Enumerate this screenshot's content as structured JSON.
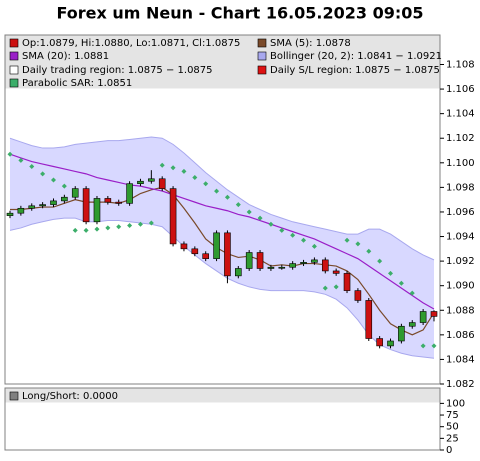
{
  "chart_data": [
    {
      "type": "candlestick",
      "title": "Forex um Neun - Chart 16.05.2023 09:05",
      "up_color": "#2f9a2f",
      "down_color": "#cc1111",
      "open": [
        1.0957,
        1.0959,
        1.0963,
        1.0965,
        1.0966,
        1.0969,
        1.0972,
        1.0979,
        1.0952,
        1.0971,
        1.0968,
        1.0967,
        1.0983,
        1.0985,
        1.0987,
        1.0979,
        1.0934,
        1.093,
        1.0926,
        1.0922,
        1.0943,
        1.0908,
        1.0914,
        1.0927,
        1.0914,
        1.0915,
        1.0915,
        1.0918,
        1.0919,
        1.0921,
        1.0912,
        1.091,
        1.0896,
        1.0888,
        1.0857,
        1.0851,
        1.0855,
        1.0867,
        1.087,
        1.0879
      ],
      "high": [
        1.0961,
        1.0965,
        1.0967,
        1.0968,
        1.0971,
        1.0974,
        1.0981,
        1.0981,
        1.0973,
        1.0973,
        1.097,
        1.0985,
        1.0987,
        1.0994,
        1.0989,
        1.0981,
        1.0936,
        1.0932,
        1.0928,
        1.0945,
        1.0945,
        1.0916,
        1.0929,
        1.0929,
        1.0917,
        1.0917,
        1.092,
        1.0921,
        1.0923,
        1.0923,
        1.0914,
        1.0912,
        1.0898,
        1.089,
        1.0859,
        1.0857,
        1.0869,
        1.0872,
        1.0881,
        1.088
      ],
      "low": [
        1.0955,
        1.0957,
        1.0961,
        1.0963,
        1.0964,
        1.0967,
        1.097,
        1.095,
        1.095,
        1.0966,
        1.0965,
        1.0965,
        1.0981,
        1.0983,
        1.0977,
        1.0932,
        1.0928,
        1.0924,
        1.092,
        1.092,
        1.0902,
        1.0906,
        1.0912,
        1.0912,
        1.0912,
        1.0913,
        1.0913,
        1.0916,
        1.0917,
        1.091,
        1.0908,
        1.0894,
        1.0886,
        1.0855,
        1.0849,
        1.0849,
        1.0853,
        1.0865,
        1.0868,
        1.0871
      ],
      "close": [
        1.0959,
        1.0963,
        1.0965,
        1.0966,
        1.0969,
        1.0972,
        1.0979,
        1.0952,
        1.0971,
        1.0968,
        1.0967,
        1.0983,
        1.0985,
        1.0987,
        1.0979,
        1.0934,
        1.093,
        1.0926,
        1.0922,
        1.0943,
        1.0908,
        1.0914,
        1.0927,
        1.0914,
        1.0915,
        1.0915,
        1.0918,
        1.0919,
        1.0921,
        1.0912,
        1.091,
        1.0896,
        1.0888,
        1.0857,
        1.0851,
        1.0855,
        1.0867,
        1.087,
        1.0879,
        1.0875
      ],
      "series": [
        {
          "name": "SMA (5): 1.0878",
          "color": "#7a4a2a",
          "values": [
            1.0962,
            1.0962,
            1.0963,
            1.0964,
            1.0964,
            1.0967,
            1.097,
            1.0968,
            1.0968,
            1.0968,
            1.0967,
            1.097,
            1.0975,
            1.0978,
            1.098,
            1.0974,
            1.0963,
            1.0951,
            1.0938,
            1.0931,
            1.0926,
            1.0923,
            1.0924,
            1.0921,
            1.0916,
            1.0917,
            1.0916,
            1.0918,
            1.0918,
            1.0917,
            1.0916,
            1.0912,
            1.0905,
            1.0893,
            1.088,
            1.0869,
            1.0864,
            1.086,
            1.0864,
            1.0878
          ]
        },
        {
          "name": "SMA (20): 1.0881",
          "color": "#9a1fc8",
          "values": [
            1.1007,
            1.1004,
            1.1001,
            1.0999,
            1.0997,
            1.0995,
            1.0993,
            1.0991,
            1.0988,
            1.0986,
            1.0984,
            1.0982,
            1.0981,
            1.0979,
            1.0977,
            1.0974,
            1.0971,
            1.0968,
            1.0965,
            1.0963,
            1.0961,
            1.0958,
            1.0956,
            1.0953,
            1.095,
            1.0947,
            1.0944,
            1.0941,
            1.0938,
            1.0934,
            1.093,
            1.0926,
            1.0922,
            1.0916,
            1.091,
            1.0904,
            1.0898,
            1.0892,
            1.0886,
            1.0881
          ]
        },
        {
          "name": "Bollinger (20, 2): 1.0841 − 1.0921",
          "color": "#a8a8ee",
          "upper": [
            1.102,
            1.1017,
            1.1014,
            1.1012,
            1.1012,
            1.1013,
            1.1015,
            1.1016,
            1.1017,
            1.1018,
            1.1018,
            1.1019,
            1.102,
            1.1021,
            1.102,
            1.1015,
            1.1008,
            1.1,
            1.0992,
            1.0985,
            1.0978,
            1.0972,
            1.0966,
            1.0962,
            1.0958,
            1.0955,
            1.0952,
            1.095,
            1.0948,
            1.0946,
            1.0944,
            1.0942,
            1.0942,
            1.0946,
            1.0946,
            1.0942,
            1.0936,
            1.093,
            1.0925,
            1.0921
          ],
          "lower": [
            1.0945,
            1.0947,
            1.095,
            1.0952,
            1.0954,
            1.0955,
            1.0955,
            1.0952,
            1.0952,
            1.0953,
            1.0953,
            1.0952,
            1.0951,
            1.095,
            1.0948,
            1.094,
            1.0932,
            1.0925,
            1.0918,
            1.0912,
            1.0906,
            1.0902,
            1.0899,
            1.0897,
            1.0896,
            1.0896,
            1.0896,
            1.0896,
            1.0895,
            1.0893,
            1.0889,
            1.0882,
            1.0872,
            1.086,
            1.0852,
            1.0848,
            1.0845,
            1.0843,
            1.0842,
            1.0841
          ]
        },
        {
          "name": "Parabolic SAR: 1.0851",
          "color": "#3cae6a",
          "values": [
            1.1007,
            1.1002,
            1.0997,
            1.0991,
            1.0986,
            1.0981,
            1.0945,
            1.0945,
            1.0946,
            1.0947,
            1.0948,
            1.0949,
            1.095,
            1.0951,
            1.0998,
            1.0996,
            1.0993,
            1.0988,
            1.0983,
            1.0977,
            1.0972,
            1.0966,
            1.096,
            1.0955,
            1.095,
            1.0945,
            1.0941,
            1.0937,
            1.0932,
            1.0898,
            1.0899,
            1.0937,
            1.0934,
            1.0928,
            1.092,
            1.091,
            1.0902,
            1.0894,
            1.0851,
            1.0851
          ]
        }
      ],
      "legend_extra": [
        {
          "name": "Op:1.0879, Hi:1.0880, Lo:1.0871, Cl:1.0875",
          "color": "#cc1111"
        },
        {
          "name": "Daily trading region: 1.0875 − 1.0875",
          "color": "#ffffff"
        },
        {
          "name": "Daily S/L region: 1.0875 − 1.0875",
          "color": "#dd1111"
        }
      ],
      "ylim": [
        1.082,
        1.1104
      ],
      "yticks": [
        1.082,
        1.084,
        1.086,
        1.088,
        {
          "value": 1.09,
          "label": "1.090"
        },
        1.092,
        1.094,
        1.096,
        1.098,
        {
          "value": 1.1,
          "label": "1.100"
        },
        1.102,
        1.104,
        1.106,
        1.108
      ]
    },
    {
      "type": "line",
      "legend": "Long/Short: 0.0000",
      "legend_color": "#808080",
      "ylim": [
        0,
        133
      ],
      "yticks": [
        0,
        25,
        50,
        75,
        100
      ]
    }
  ]
}
